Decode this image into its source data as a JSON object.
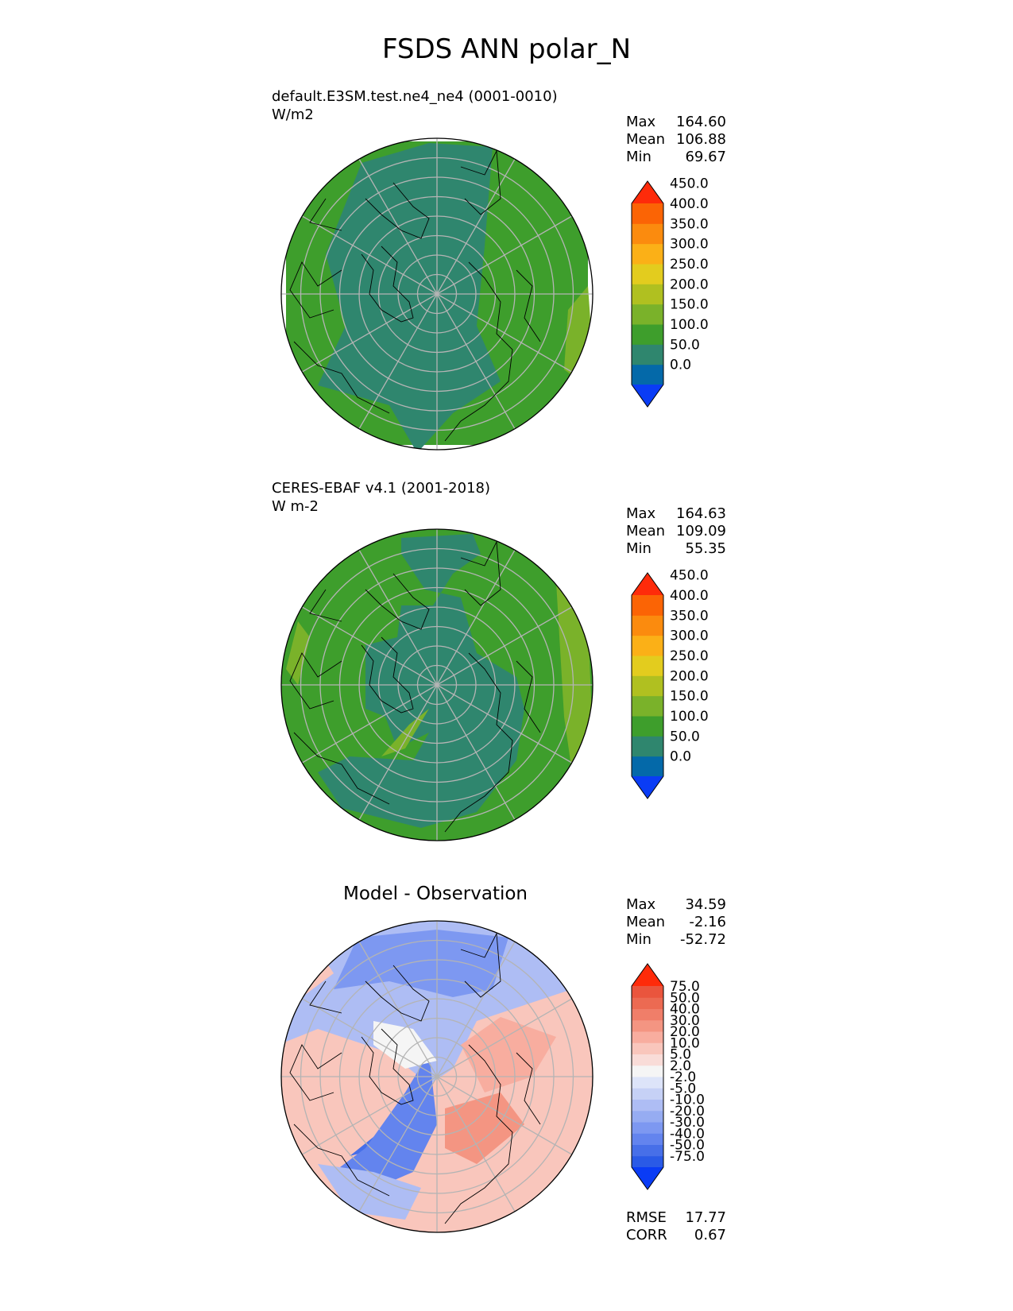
{
  "title": "FSDS ANN polar_N",
  "colors": {
    "mean_levels": [
      "#0a3cf5",
      "#0469a9",
      "#2f866e",
      "#3e9e2c",
      "#7ab22a",
      "#b0c020",
      "#e3cc1e",
      "#fbb017",
      "#fb8b0e",
      "#fb6405",
      "#fe2b0a"
    ],
    "diff_levels": [
      "#0a3cf5",
      "#2a5ae6",
      "#476fe8",
      "#6384ee",
      "#7d98f1",
      "#96acf2",
      "#aebdf4",
      "#c6d1f6",
      "#dde4f9",
      "#f5f5f5",
      "#f9dcd8",
      "#f9c6bc",
      "#f8ad9f",
      "#f49582",
      "#f07e69",
      "#ec6a52",
      "#ea553d",
      "#fe2b0a"
    ],
    "ocean_mean": "#3e9e2c",
    "ice_mean": "#2f866e",
    "grid": "#b4b4b4",
    "coast": "#000000"
  },
  "icons": {
    "colorbar_extend": "triangle-ends",
    "map_projection": "north-polar-stereographic"
  },
  "panels": [
    {
      "title": "default.E3SM.test.ne4_ne4 (0001-0010)",
      "units": "W/m2",
      "stats": [
        {
          "label": "Max",
          "value": "164.60"
        },
        {
          "label": "Mean",
          "value": "106.88"
        },
        {
          "label": "Min",
          "value": "69.67"
        }
      ],
      "colorbar_ticks": [
        "0.0",
        "50.0",
        "100.0",
        "150.0",
        "200.0",
        "250.0",
        "300.0",
        "350.0",
        "400.0",
        "450.0"
      ]
    },
    {
      "title": "CERES-EBAF v4.1 (2001-2018)",
      "units": "W m-2",
      "stats": [
        {
          "label": "Max",
          "value": "164.63"
        },
        {
          "label": "Mean",
          "value": "109.09"
        },
        {
          "label": "Min",
          "value": "55.35"
        }
      ],
      "colorbar_ticks": [
        "0.0",
        "50.0",
        "100.0",
        "150.0",
        "200.0",
        "250.0",
        "300.0",
        "350.0",
        "400.0",
        "450.0"
      ]
    },
    {
      "title": "Model - Observation",
      "stats": [
        {
          "label": "Max",
          "value": "34.59"
        },
        {
          "label": "Mean",
          "value": "-2.16"
        },
        {
          "label": "Min",
          "value": "-52.72"
        }
      ],
      "metrics": [
        {
          "label": "RMSE",
          "value": "17.77"
        },
        {
          "label": "CORR",
          "value": "0.67"
        }
      ],
      "colorbar_ticks": [
        "-75.0",
        "-50.0",
        "-40.0",
        "-30.0",
        "-20.0",
        "-10.0",
        "-5.0",
        "-2.0",
        "2.0",
        "5.0",
        "10.0",
        "20.0",
        "30.0",
        "40.0",
        "50.0",
        "75.0"
      ]
    }
  ],
  "chart_data": [
    {
      "type": "heatmap",
      "title": "default.E3SM.test.ne4_ne4 (0001-0010)",
      "units": "W/m2",
      "projection": "north polar stereographic",
      "levels": [
        0,
        50,
        100,
        150,
        200,
        250,
        300,
        350,
        400,
        450
      ],
      "extend": "both",
      "stats": {
        "max": 164.6,
        "mean": 106.88,
        "min": 69.67
      },
      "regions": [
        {
          "area": "central Arctic and Siberia",
          "range": [
            50,
            100
          ]
        },
        {
          "area": "North Atlantic, Eurasia, North America rim",
          "range": [
            100,
            150
          ]
        },
        {
          "area": "southern edge toward Pacific",
          "range": [
            150,
            200
          ]
        }
      ]
    },
    {
      "type": "heatmap",
      "title": "CERES-EBAF v4.1 (2001-2018)",
      "units": "W m-2",
      "projection": "north polar stereographic",
      "levels": [
        0,
        50,
        100,
        150,
        200,
        250,
        300,
        350,
        400,
        450
      ],
      "extend": "both",
      "stats": {
        "max": 164.63,
        "mean": 109.09,
        "min": 55.35
      },
      "regions": [
        {
          "area": "central Arctic, Greenland, Barents Sea",
          "range": [
            50,
            100
          ]
        },
        {
          "area": "surrounding mid-latitudes",
          "range": [
            100,
            150
          ]
        },
        {
          "area": "outer rim patches",
          "range": [
            150,
            200
          ]
        }
      ]
    },
    {
      "type": "heatmap",
      "title": "Model - Observation",
      "projection": "north polar stereographic",
      "levels": [
        -75,
        -50,
        -40,
        -30,
        -20,
        -10,
        -5,
        -2,
        2,
        5,
        10,
        20,
        30,
        40,
        50,
        75
      ],
      "extend": "both",
      "stats": {
        "max": 34.59,
        "mean": -2.16,
        "min": -52.72,
        "rmse": 17.77,
        "corr": 0.67
      },
      "regions": [
        {
          "area": "top half (Siberia/Arctic Ocean)",
          "range": [
            -20,
            -5
          ]
        },
        {
          "area": "Greenland and North Atlantic band",
          "range": [
            -50,
            -20
          ]
        },
        {
          "area": "North America / right sector",
          "range": [
            5,
            30
          ]
        },
        {
          "area": "Europe / left sector",
          "range": [
            5,
            20
          ]
        }
      ]
    }
  ]
}
